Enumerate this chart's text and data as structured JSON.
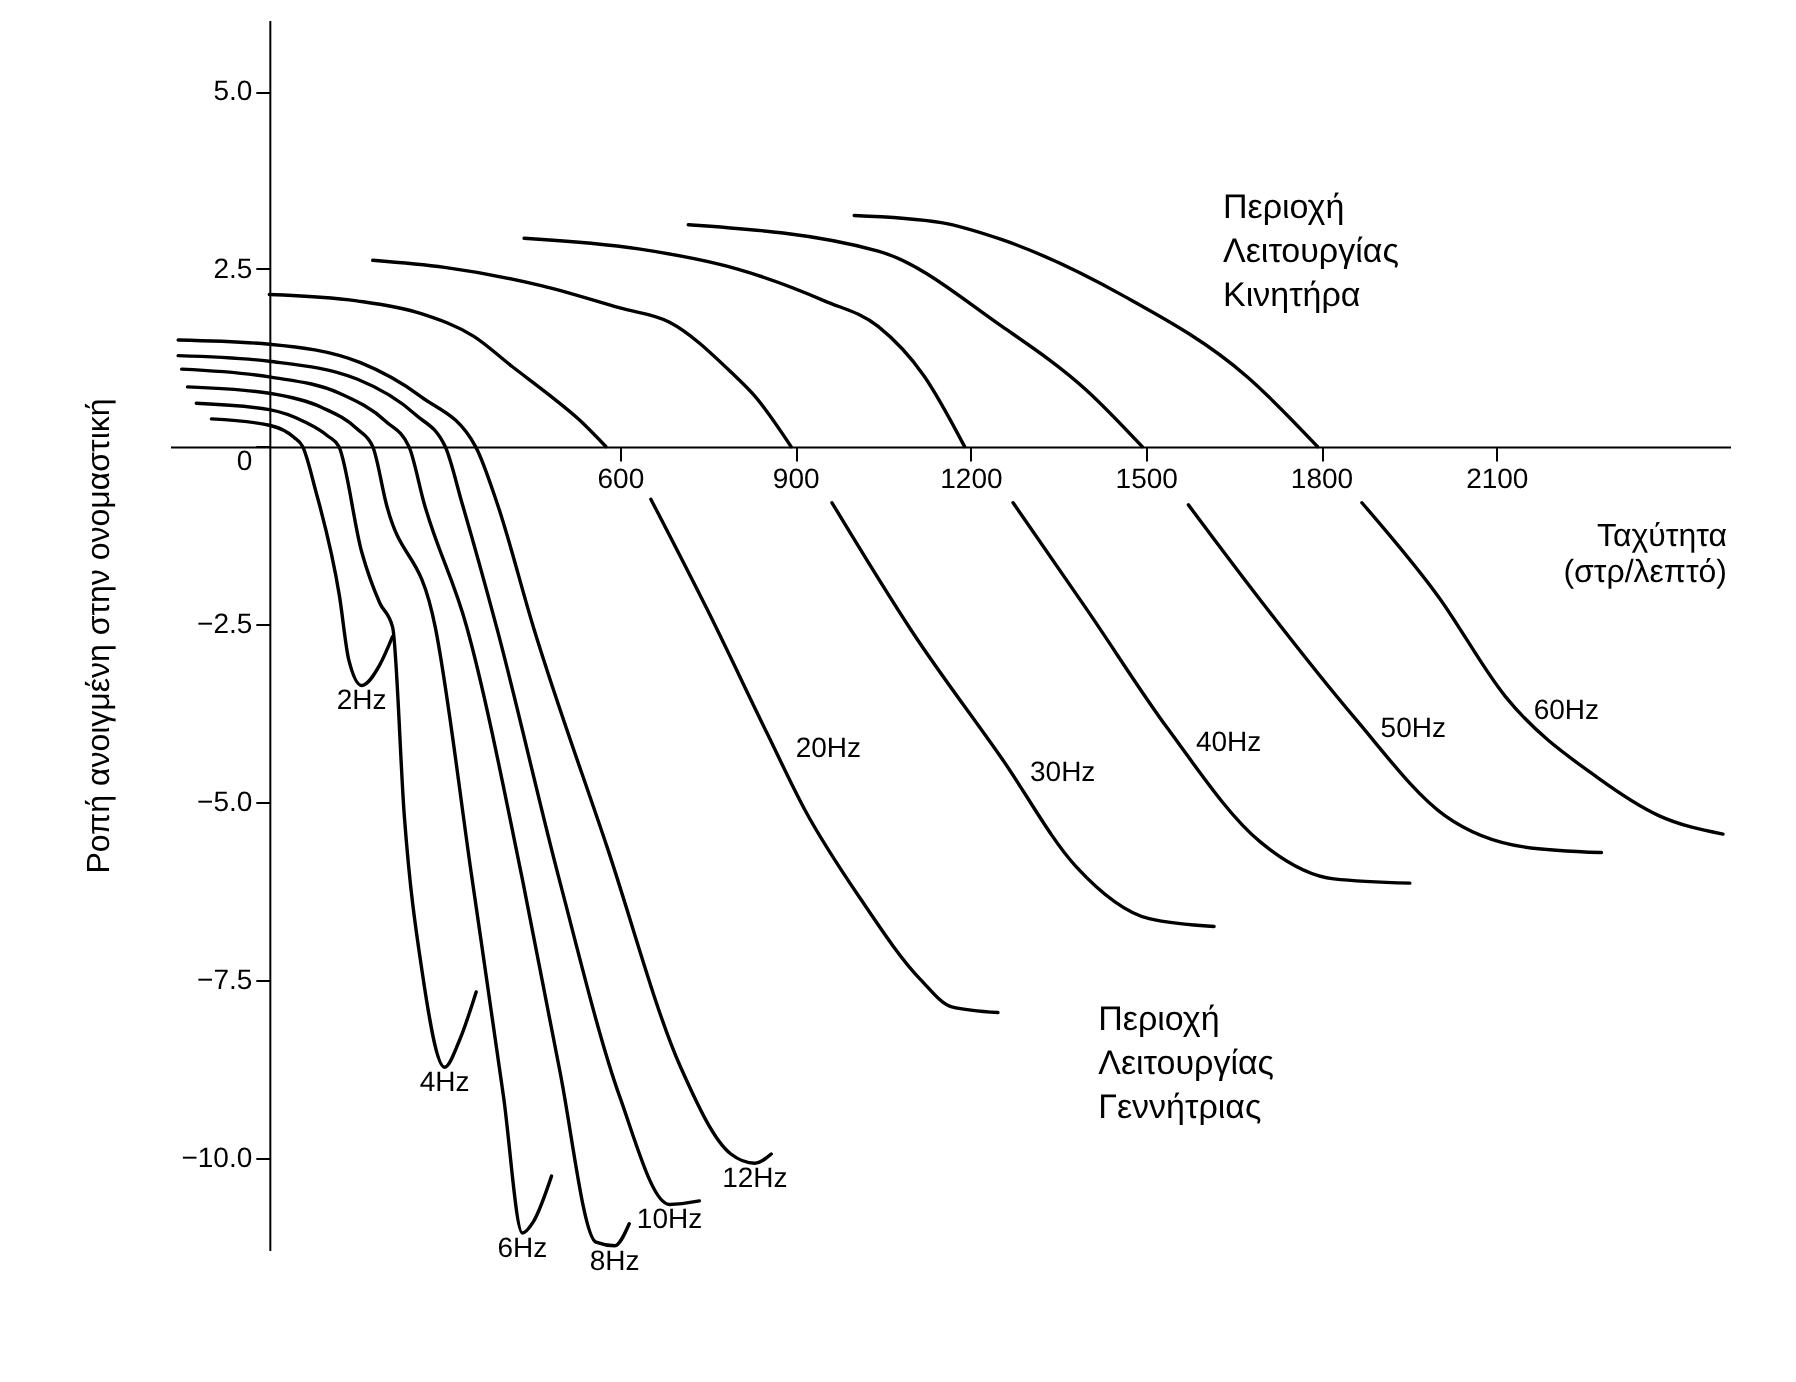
{
  "chart_data": {
    "type": "line",
    "xlabel": "Ταχύτητα\n(στρ/λεπτό)",
    "ylabel": "Ροπή ανοιγμένη στην ονομαστική",
    "annotations": [
      "Περιοχή\nΛειτουργίας\nΚινητήρα",
      "Περιοχή\nΛειτουργίας\nΓεννήτριας"
    ],
    "xlim": [
      -170,
      2500
    ],
    "xticks": [
      600,
      900,
      1200,
      1500,
      1800,
      2100
    ],
    "ylim": [
      -11.3,
      6
    ],
    "yticks": [
      {
        "value": 5,
        "label": "5.0"
      },
      {
        "value": 2.5,
        "label": "2.5"
      },
      0,
      {
        "value": -2.5,
        "label": "−2.5"
      },
      {
        "value": -5,
        "label": "−5.0"
      },
      {
        "value": -7.5,
        "label": "−7.5"
      },
      {
        "value": -10,
        "label": "−10.0"
      }
    ],
    "series": [
      {
        "name": "2Hz",
        "color": "#000000",
        "x": [
          -99,
          0,
          42,
          57,
          79,
          120,
          136,
          158,
          189,
          211
        ],
        "values": [
          0.39,
          0.3,
          0.13,
          0,
          -0.61,
          -2.1,
          -3.0,
          -3.36,
          -3.07,
          -2.67
        ]
      },
      {
        "name": "4Hz",
        "color": "#000000",
        "x": [
          -125,
          0,
          60,
          100,
          119,
          158,
          189,
          211,
          231,
          262,
          300,
          325,
          354
        ],
        "values": [
          0.61,
          0.52,
          0.35,
          0.15,
          0,
          -1.48,
          -2.2,
          -2.54,
          -5.19,
          -7.41,
          -8.73,
          -8.36,
          -7.67
        ]
      },
      {
        "name": "6Hz",
        "color": "#000000",
        "x": [
          -140,
          0,
          90,
          150,
          177,
          200,
          284,
          347,
          401,
          433,
          452,
          483
        ],
        "values": [
          0.84,
          0.75,
          0.55,
          0.25,
          0,
          -0.8,
          -2.54,
          -6.08,
          -9.15,
          -11.06,
          -10.9,
          -10.26
        ]
      },
      {
        "name": "8Hz",
        "color": "#000000",
        "x": [
          -150,
          0,
          120,
          200,
          239,
          265,
          338,
          433,
          496,
          559,
          591,
          616
        ],
        "values": [
          1.09,
          0.98,
          0.75,
          0.35,
          0,
          -0.8,
          -2.54,
          -6.08,
          -8.73,
          -11.19,
          -11.24,
          -10.93
        ]
      },
      {
        "name": "10Hz",
        "color": "#000000",
        "x": [
          -156,
          0,
          150,
          250,
          301,
          330,
          389,
          496,
          600,
          685,
          736
        ],
        "values": [
          1.28,
          1.2,
          0.95,
          0.45,
          0,
          -0.8,
          -2.54,
          -6.08,
          -9.15,
          -10.66,
          -10.61
        ]
      },
      {
        "name": "12Hz",
        "color": "#000000",
        "x": [
          -156,
          0,
          156,
          260,
          353,
          390,
          452,
          578,
          704,
          790,
          831,
          859
        ],
        "values": [
          1.5,
          1.44,
          1.18,
          0.7,
          0,
          -0.8,
          -2.54,
          -5.63,
          -8.73,
          -9.95,
          -10.08,
          -9.95
        ]
      },
      {
        "name": "20Hz",
        "color": "#000000",
        "x": [
          0,
          150,
          260,
          350,
          415,
          480,
          530,
          576,
          615,
          653,
          750,
          853,
          916,
          1011,
          1115,
          1168,
          1247
        ],
        "values": [
          2.14,
          2.05,
          1.87,
          1.55,
          1.13,
          0.72,
          0.38,
          0,
          null,
          -0.74,
          -2.3,
          -4.05,
          -5.1,
          -6.35,
          -7.5,
          -7.88,
          -7.96
        ]
      },
      {
        "name": "30Hz",
        "color": "#000000",
        "x": [
          177,
          300,
          467,
          600,
          685,
          790,
          831,
          893,
          930,
          963,
          1100,
          1254,
          1380,
          1506,
          1617
        ],
        "values": [
          2.62,
          2.52,
          2.26,
          1.95,
          1.75,
          1.05,
          0.71,
          0,
          null,
          -0.79,
          -2.6,
          -4.39,
          -5.9,
          -6.64,
          -6.75
        ]
      },
      {
        "name": "40Hz",
        "color": "#000000",
        "x": [
          436,
          632,
          800,
          950,
          1042,
          1120,
          1190,
          1230,
          1273,
          1400,
          1538,
          1696,
          1822,
          1952
        ],
        "values": [
          2.93,
          2.78,
          2.5,
          2.05,
          1.69,
          1.0,
          0,
          null,
          -0.79,
          -2.3,
          -3.97,
          -5.56,
          -6.08,
          -6.14
        ]
      },
      {
        "name": "50Hz",
        "color": "#000000",
        "x": [
          717,
          1042,
          1254,
          1399,
          1494,
          1535,
          1573,
          1700,
          1854,
          2012,
          2147,
          2280
        ],
        "values": [
          3.12,
          2.75,
          1.69,
          0.79,
          0,
          null,
          -0.82,
          -2.2,
          -3.78,
          -5.19,
          -5.63,
          -5.71
        ]
      },
      {
        "name": "60Hz",
        "color": "#000000",
        "x": [
          1001,
          1150,
          1254,
          1462,
          1674,
          1794,
          1830,
          1870,
          2000,
          2116,
          2274,
          2378,
          2488
        ],
        "values": [
          3.25,
          3.15,
          2.91,
          2.12,
          0.98,
          0,
          null,
          -0.79,
          -2.1,
          -3.52,
          -4.66,
          -5.19,
          -5.45
        ]
      }
    ]
  }
}
